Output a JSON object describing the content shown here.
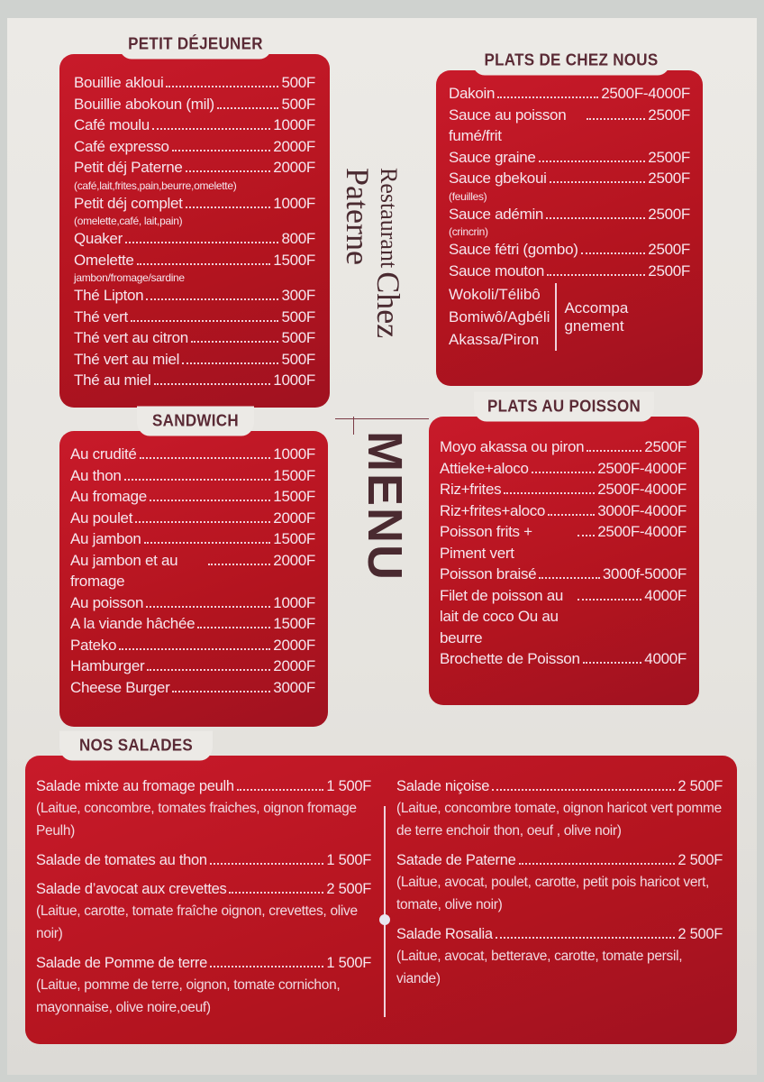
{
  "brand": {
    "restaurant": "Restaurant",
    "name": "Chez Paterne",
    "menu": "MENU"
  },
  "colors": {
    "panel": "#b3141f",
    "title": "#5a2a35",
    "background": "#eceae6"
  },
  "petit_dejeuner": {
    "title": "PETIT DÉJEUNER",
    "items": [
      {
        "name": "Bouillie akloui",
        "price": "500F"
      },
      {
        "name": "Bouillie abokoun (mil)",
        "price": "500F"
      },
      {
        "name": "Café moulu",
        "price": "1000F"
      },
      {
        "name": "Café expresso",
        "price": "2000F"
      },
      {
        "name": "Petit déj Paterne",
        "price": "2000F",
        "note": "(café,lait,frites,pain,beurre,omelette)"
      },
      {
        "name": "Petit déj complet",
        "price": "1000F",
        "note": "(omelette,café, lait,pain)"
      },
      {
        "name": "Quaker",
        "price": "800F"
      },
      {
        "name": "Omelette",
        "price": "1500F",
        "note": "jambon/fromage/sardine"
      },
      {
        "name": "Thé Lipton",
        "price": "300F"
      },
      {
        "name": "Thé vert",
        "price": "500F"
      },
      {
        "name": "Thé vert au citron",
        "price": "500F"
      },
      {
        "name": "Thé vert au miel",
        "price": "500F"
      },
      {
        "name": "Thé au miel",
        "price": "1000F"
      }
    ]
  },
  "plats_chez_nous": {
    "title": "PLATS DE CHEZ NOUS",
    "items": [
      {
        "name": "Dakoin",
        "price": "2500F-4000F"
      },
      {
        "name": "Sauce au poisson fumé/frit",
        "price": "2500F"
      },
      {
        "name": "Sauce graine",
        "price": "2500F"
      },
      {
        "name": "Sauce gbekoui",
        "price": "2500F",
        "note": "(feuilles)"
      },
      {
        "name": "Sauce adémin",
        "price": "2500F",
        "note": "(crincrin)"
      },
      {
        "name": "Sauce fétri (gombo)",
        "price": "2500F"
      },
      {
        "name": "Sauce mouton",
        "price": "2500F"
      }
    ],
    "accompagnement": {
      "items": [
        "Wokoli/Télibô",
        "Bomiwô/Agbéli",
        "Akassa/Piron"
      ],
      "label": "Accompa gnement"
    }
  },
  "sandwich": {
    "title": "SANDWICH",
    "items": [
      {
        "name": "Au crudité",
        "price": "1000F"
      },
      {
        "name": "Au thon",
        "price": "1500F"
      },
      {
        "name": "Au fromage",
        "price": "1500F"
      },
      {
        "name": "Au poulet",
        "price": "2000F"
      },
      {
        "name": "Au jambon",
        "price": "1500F"
      },
      {
        "name": "Au jambon et au fromage",
        "price": "2000F"
      },
      {
        "name": "Au poisson",
        "price": "1000F"
      },
      {
        "name": "A la viande hâchée",
        "price": "1500F"
      },
      {
        "name": "Pateko",
        "price": "2000F"
      },
      {
        "name": "Hamburger",
        "price": "2000F"
      },
      {
        "name": "Cheese Burger",
        "price": "3000F"
      }
    ]
  },
  "plats_poisson": {
    "title": "PLATS AU POISSON",
    "items": [
      {
        "name": "Moyo akassa ou piron",
        "price": "2500F"
      },
      {
        "name": "Attieke+aloco",
        "price": "2500F-4000F"
      },
      {
        "name": "Riz+frites",
        "price": "2500F-4000F"
      },
      {
        "name": "Riz+frites+aloco",
        "price": "3000F-4000F"
      },
      {
        "name": "Poisson frits + Piment vert",
        "price": "2500F-4000F"
      },
      {
        "name": "Poisson braisé",
        "price": "3000f-5000F"
      },
      {
        "name": "Filet de poisson au lait de coco Ou au beurre",
        "price": "4000F"
      },
      {
        "name": "Brochette de Poisson",
        "price": "4000F"
      }
    ]
  },
  "salades": {
    "title": "NOS SALADES",
    "left": [
      {
        "name": "Salade mixte au fromage peulh",
        "price": "1 500F",
        "note": "(Laitue, concombre, tomates fraiches, oignon fromage Peulh)"
      },
      {
        "name": "Salade de tomates au thon",
        "price": "1 500F"
      },
      {
        "name": "Salade d’avocat aux crevettes",
        "price": "2 500F",
        "note": "(Laitue, carotte, tomate fraîche oignon, crevettes, olive noir)"
      },
      {
        "name": "Salade de Pomme de terre",
        "price": "1 500F",
        "note": "(Laitue, pomme de terre, oignon, tomate cornichon, mayonnaise, olive noire,oeuf)"
      }
    ],
    "right": [
      {
        "name": "Salade niçoise",
        "price": "2 500F",
        "note": "(Laitue, concombre tomate, oignon haricot vert pomme de terre enchoir thon, oeuf , olive noir)"
      },
      {
        "name": "Satade de Paterne",
        "price": "2 500F",
        "note": "(Laitue, avocat, poulet, carotte, petit pois haricot vert, tomate, olive noir)"
      },
      {
        "name": "Salade Rosalia",
        "price": "2 500F",
        "note": "(Laitue, avocat, betterave, carotte, tomate persil, viande)"
      }
    ]
  }
}
